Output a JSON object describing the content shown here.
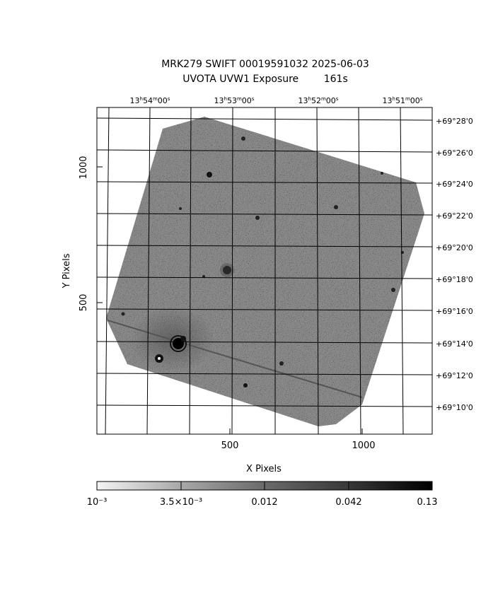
{
  "figure": {
    "title_line1": "MRK279 SWIFT 00019591032 2025-06-03",
    "title_line2": "UVOTA UVW1 Exposure        161s",
    "xlabel": "X Pixels",
    "ylabel": "Y Pixels",
    "x_ticks": [
      "500",
      "1000"
    ],
    "y_ticks": [
      "500",
      "1000"
    ],
    "ra_ticks": [
      "13h54m00s",
      "13h53m00s",
      "13h52m00s",
      "13h51m00s"
    ],
    "dec_ticks": [
      "+69°28'0",
      "+69°26'0",
      "+69°24'0",
      "+69°22'0",
      "+69°20'0",
      "+69°18'0",
      "+69°16'0",
      "+69°14'0",
      "+69°12'0",
      "+69°10'0"
    ]
  },
  "colorbar": {
    "scale": "log",
    "tick_labels": [
      "10⁻³",
      "3.5×10⁻³",
      "0.012",
      "0.042",
      "0.13"
    ],
    "colors": [
      "#f4f4f4",
      "#000000"
    ]
  },
  "image": {
    "x_range": [
      0,
      1270
    ],
    "y_range": [
      0,
      1240
    ],
    "background": "#ffffff",
    "exposure_fill": "#8a8a8a",
    "trail": "#555555"
  }
}
